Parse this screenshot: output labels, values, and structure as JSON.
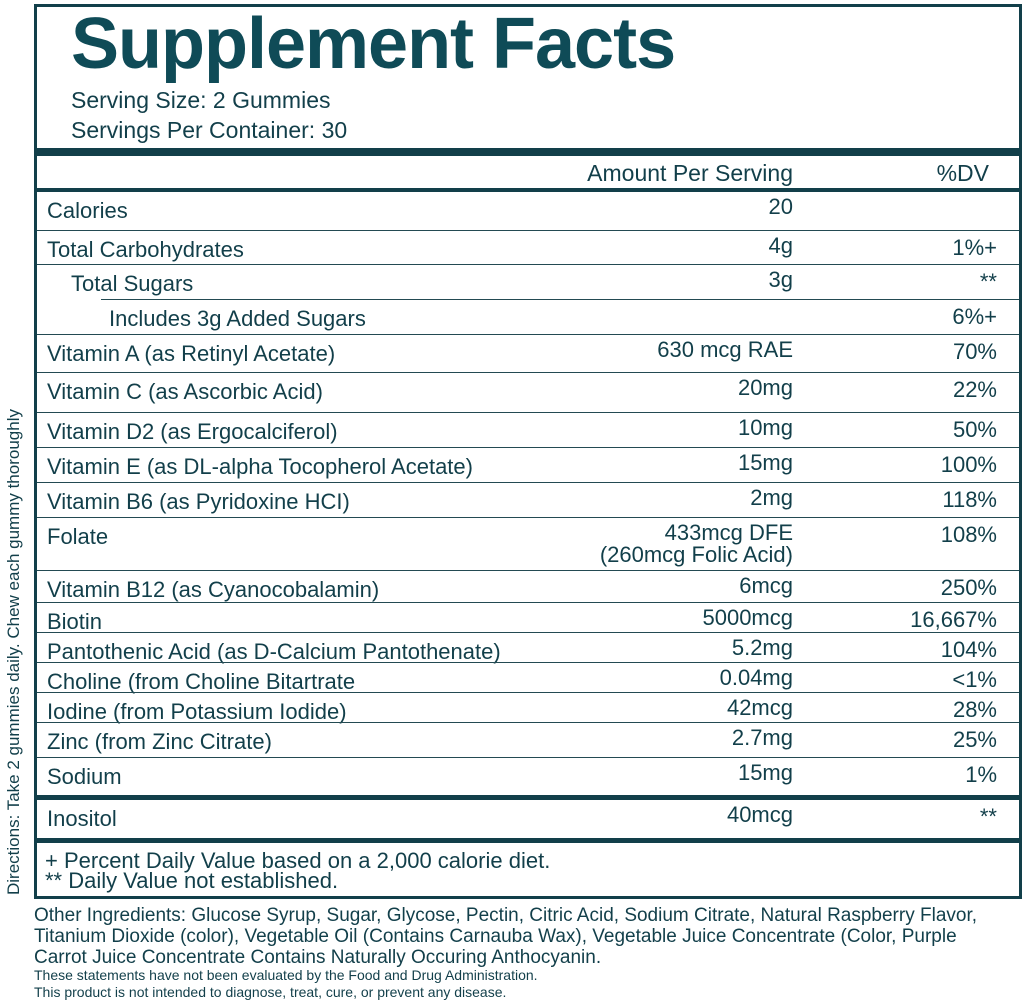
{
  "title": "Supplement Facts",
  "serving_size": "Serving Size: 2 Gummies",
  "servings_per_container": "Servings Per Container: 30",
  "header": {
    "amount": "Amount Per Serving",
    "dv": "%DV"
  },
  "rows": [
    {
      "name": "Calories",
      "amount": "20",
      "dv": ""
    },
    {
      "name": "Total Carbohydrates",
      "amount": "4g",
      "dv": "1%+"
    },
    {
      "name": "Total Sugars",
      "amount": "3g",
      "dv": "**"
    },
    {
      "name": "Includes 3g Added Sugars",
      "amount": "",
      "dv": "6%+"
    },
    {
      "name": "Vitamin A (as Retinyl Acetate)",
      "amount": "630 mcg RAE",
      "dv": "70%"
    },
    {
      "name": "Vitamin C (as Ascorbic Acid)",
      "amount": "20mg",
      "dv": "22%"
    },
    {
      "name": "Vitamin D2 (as Ergocalciferol)",
      "amount": "10mg",
      "dv": "50%"
    },
    {
      "name": "Vitamin E (as DL-alpha Tocopherol Acetate)",
      "amount": "15mg",
      "dv": "100%"
    },
    {
      "name": "Vitamin B6 (as Pyridoxine HCI)",
      "amount": "2mg",
      "dv": "118%"
    },
    {
      "name": "Folate",
      "amount": "433mcg DFE",
      "amount2": "(260mcg Folic Acid)",
      "dv": "108%"
    },
    {
      "name": "Vitamin B12 (as Cyanocobalamin)",
      "amount": "6mcg",
      "dv": "250%"
    },
    {
      "name": "Biotin",
      "amount": "5000mcg",
      "dv": "16,667%"
    },
    {
      "name": "Pantothenic Acid (as D-Calcium Pantothenate)",
      "amount": "5.2mg",
      "dv": "104%"
    },
    {
      "name": "Choline (from Choline Bitartrate",
      "amount": "0.04mg",
      "dv": "<1%"
    },
    {
      "name": "Iodine (from Potassium Iodide)",
      "amount": "42mcg",
      "dv": "28%"
    },
    {
      "name": "Zinc (from Zinc Citrate)",
      "amount": "2.7mg",
      "dv": "25%"
    },
    {
      "name": "Sodium",
      "amount": "15mg",
      "dv": "1%"
    },
    {
      "name": "Inositol",
      "amount": "40mcg",
      "dv": "**"
    }
  ],
  "footnotes": [
    "+ Percent Daily Value based on a 2,000 calorie diet.",
    "** Daily Value not established."
  ],
  "directions": "Directions: Take 2 gummies daily. Chew each gummy thoroughly",
  "other_ingredients": "Other Ingredients: Glucose Syrup, Sugar, Glycose, Pectin, Citric Acid, Sodium Citrate, Natural Raspberry Flavor, Titanium Dioxide (color), Vegetable Oil (Contains Carnauba Wax), Vegetable Juice Concentrate (Color, Purple Carrot Juice Concentrate Contains Naturally Occuring Anthocyanin.",
  "disclaimer": [
    "These statements have not been evaluated by the Food and Drug Administration.",
    "This product is not intended to diagnose, treat, cure, or prevent any disease."
  ],
  "colors": {
    "text": "#123f4a",
    "title": "#0f4b57"
  }
}
